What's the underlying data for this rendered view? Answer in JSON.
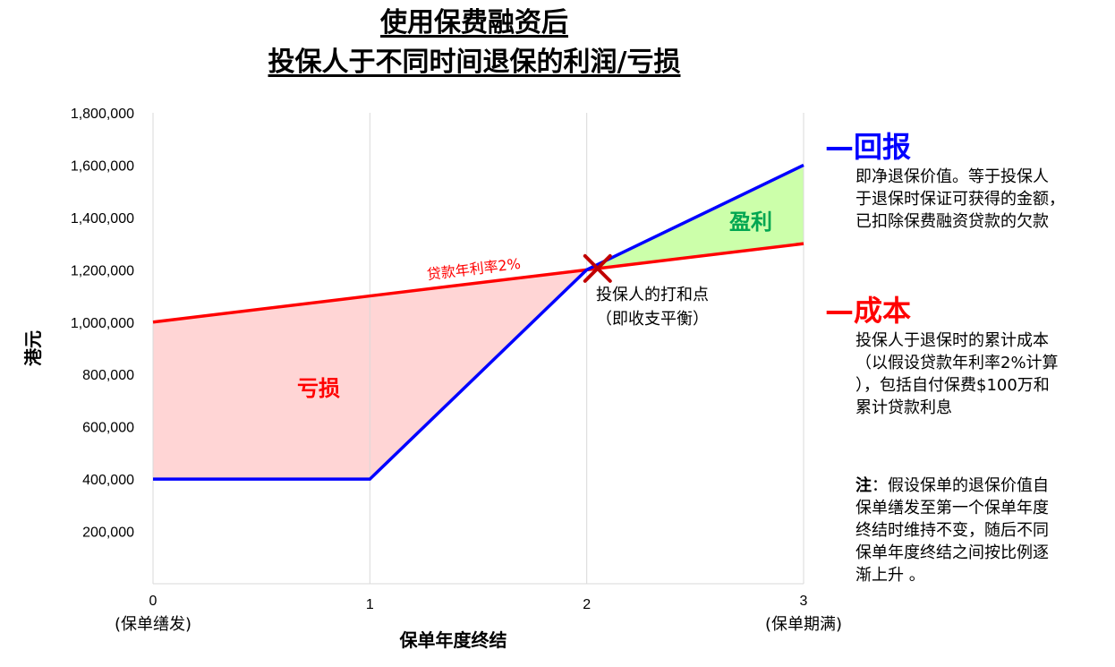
{
  "title": {
    "line1": "使用保费融资后",
    "line2": "投保人于不同时间退保的利润/亏损"
  },
  "legend": {
    "return": {
      "label": "回报",
      "marker": "—",
      "color": "#0000ff",
      "desc": [
        "即净退保价值。等于投保人",
        "于退保时保证可获得的金额，",
        "已扣除保费融资贷款的欠款"
      ]
    },
    "cost": {
      "label": "成本",
      "marker": "—",
      "color": "#ff0000",
      "desc": [
        "投保人于退保时的累计成本",
        "（以假设贷款年利率2%计算",
        "），包括自付保费$100万和",
        "累计贷款利息"
      ]
    }
  },
  "note": {
    "prefix": "注",
    "lines": [
      "：假设保单的退保价值自",
      "保单缮发至第一个保单年度",
      "终结时维持不变，随后不同",
      "保单年度终结之间按比例逐",
      "渐上升 。"
    ]
  },
  "chart_data": {
    "type": "line",
    "xlabel": "保单年度终结",
    "ylabel": "港元",
    "xlim": [
      0,
      3
    ],
    "ylim": [
      0,
      1800000
    ],
    "yticks": [
      {
        "v": 200000,
        "label": "200,000"
      },
      {
        "v": 400000,
        "label": "400,000"
      },
      {
        "v": 600000,
        "label": "600,000"
      },
      {
        "v": 800000,
        "label": "800,000"
      },
      {
        "v": 1000000,
        "label": "1,000,000"
      },
      {
        "v": 1200000,
        "label": "1,200,000"
      },
      {
        "v": 1400000,
        "label": "1,400,000"
      },
      {
        "v": 1600000,
        "label": "1,600,000"
      },
      {
        "v": 1800000,
        "label": "1,800,000"
      }
    ],
    "xticks": [
      {
        "v": 0,
        "label": "0",
        "sub": "(保单缮发)"
      },
      {
        "v": 1,
        "label": "1",
        "sub": ""
      },
      {
        "v": 2,
        "label": "2",
        "sub": ""
      },
      {
        "v": 3,
        "label": "3",
        "sub": "(保单期满)"
      }
    ],
    "series": [
      {
        "name": "回报",
        "color": "#0000ff",
        "x": [
          0,
          1,
          2,
          3
        ],
        "y": [
          400000,
          400000,
          1200000,
          1600000
        ]
      },
      {
        "name": "成本",
        "color": "#ff0000",
        "x": [
          0,
          1,
          2,
          3
        ],
        "y": [
          1000000,
          1100000,
          1200000,
          1300000
        ]
      }
    ],
    "regions": [
      {
        "label": "亏损",
        "color": "#ffd5d5",
        "text_color": "#ff0000"
      },
      {
        "label": "盈利",
        "color": "#ccffaa",
        "text_color": "#00a651"
      }
    ],
    "annotations": {
      "rate_label": "贷款年利率2%",
      "breakeven_line1": "投保人的打和点",
      "breakeven_line2": "（即收支平衡）",
      "breakeven_x": 2.05,
      "breakeven_y": 1205000,
      "marker_color": "#c00000"
    },
    "grid": "vertical"
  }
}
